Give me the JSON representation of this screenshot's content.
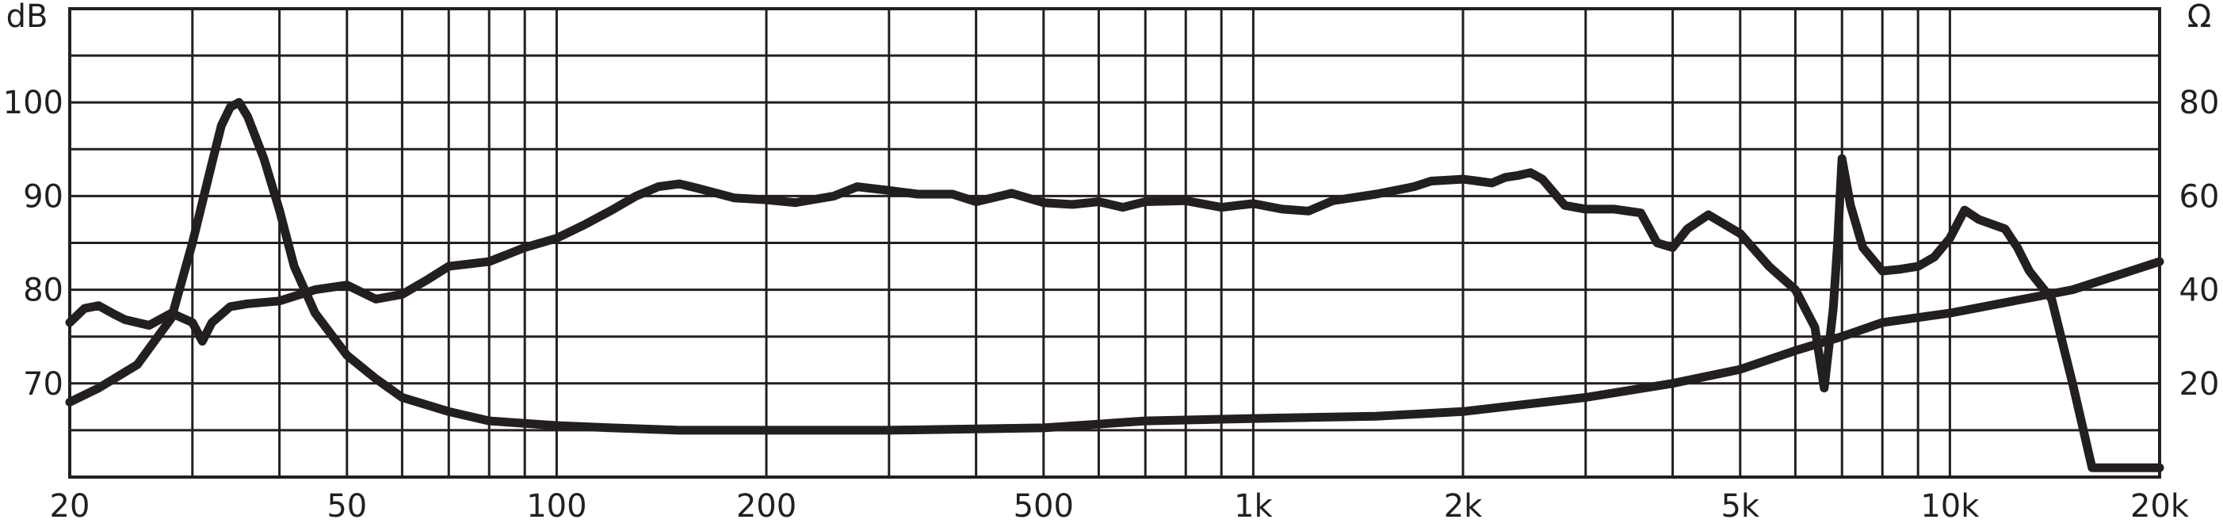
{
  "chart_data": {
    "type": "line",
    "title": "",
    "xlabel": "",
    "x_scale": "log",
    "xlim": [
      20,
      20000
    ],
    "x_ticks": [
      20,
      50,
      100,
      200,
      500,
      1000,
      2000,
      5000,
      10000,
      20000
    ],
    "x_tick_labels": [
      "20",
      "50",
      "100",
      "200",
      "500",
      "1k",
      "2k",
      "5k",
      "10k",
      "20k"
    ],
    "y_left": {
      "unit_label": "dB",
      "lim": [
        60,
        110
      ],
      "ticks": [
        70,
        80,
        90,
        100
      ],
      "tick_labels": [
        "70",
        "80",
        "90",
        "100"
      ]
    },
    "y_right": {
      "unit_label": "Ω",
      "lim": [
        0,
        100
      ],
      "ticks": [
        20,
        40,
        60,
        80
      ],
      "tick_labels": [
        "20",
        "40",
        "60",
        "80"
      ]
    },
    "grid": true,
    "line_color": "#231f20",
    "grid_color": "#231f20",
    "series": [
      {
        "axis": "left",
        "x": [
          20,
          21,
          22,
          23,
          24,
          26,
          28,
          30,
          31,
          32,
          34,
          36,
          40,
          45,
          50,
          55,
          60,
          65,
          70,
          80,
          90,
          100,
          110,
          120,
          130,
          140,
          150,
          160,
          180,
          200,
          220,
          250,
          270,
          300,
          330,
          370,
          400,
          450,
          500,
          550,
          600,
          650,
          700,
          800,
          900,
          1000,
          1100,
          1200,
          1300,
          1500,
          1700,
          1800,
          2000,
          2100,
          2200,
          2300,
          2400,
          2500,
          2600,
          2800,
          3000,
          3300,
          3600,
          3800,
          4000,
          4200,
          4500,
          5000,
          5500,
          6000,
          6400,
          6600,
          6800,
          6900,
          7000,
          7200,
          7500,
          8000,
          8500,
          9000,
          9500,
          10000,
          10500,
          11000,
          12000,
          12500,
          13000,
          14000,
          15000,
          16000,
          18000,
          19500,
          20000
        ],
        "y": [
          76.5,
          78,
          78.3,
          77.5,
          76.8,
          76.2,
          77.5,
          76.5,
          74.5,
          76.5,
          78.2,
          78.5,
          78.8,
          80,
          80.5,
          79,
          79.5,
          81,
          82.5,
          83,
          84.5,
          85.5,
          87,
          88.5,
          90,
          91,
          91.3,
          90.8,
          89.8,
          89.6,
          89.3,
          90,
          91,
          90.6,
          90.2,
          90.2,
          89.4,
          90.3,
          89.3,
          89.1,
          89.4,
          88.8,
          89.4,
          89.5,
          88.8,
          89.2,
          88.6,
          88.4,
          89.5,
          90.2,
          91,
          91.6,
          91.8,
          91.6,
          91.4,
          92,
          92.2,
          92.5,
          91.8,
          89,
          88.6,
          88.6,
          88.2,
          85,
          84.5,
          86.5,
          88,
          86,
          82.5,
          80,
          76,
          69.5,
          78,
          85,
          94,
          89,
          84.5,
          82,
          82.2,
          82.5,
          83.5,
          85.5,
          88.5,
          87.5,
          86.5,
          84.5,
          82,
          79,
          70,
          61,
          61,
          61,
          61
        ]
      },
      {
        "axis": "right",
        "x": [
          20,
          22,
          25,
          28,
          30,
          32,
          33,
          34,
          35,
          36,
          38,
          40,
          42,
          45,
          50,
          55,
          60,
          70,
          80,
          100,
          120,
          150,
          200,
          300,
          500,
          700,
          1000,
          1500,
          2000,
          3000,
          4000,
          5000,
          6000,
          7000,
          8000,
          10000,
          15000,
          20000
        ],
        "y": [
          16,
          19,
          24,
          34,
          50,
          67,
          75,
          79,
          80,
          77,
          68,
          57,
          45,
          35,
          26,
          21,
          17,
          14,
          12,
          11,
          10.5,
          10,
          10,
          10,
          10.5,
          12,
          12.5,
          13,
          14,
          17,
          20,
          23,
          27,
          30,
          33,
          35,
          40,
          46
        ]
      }
    ]
  }
}
